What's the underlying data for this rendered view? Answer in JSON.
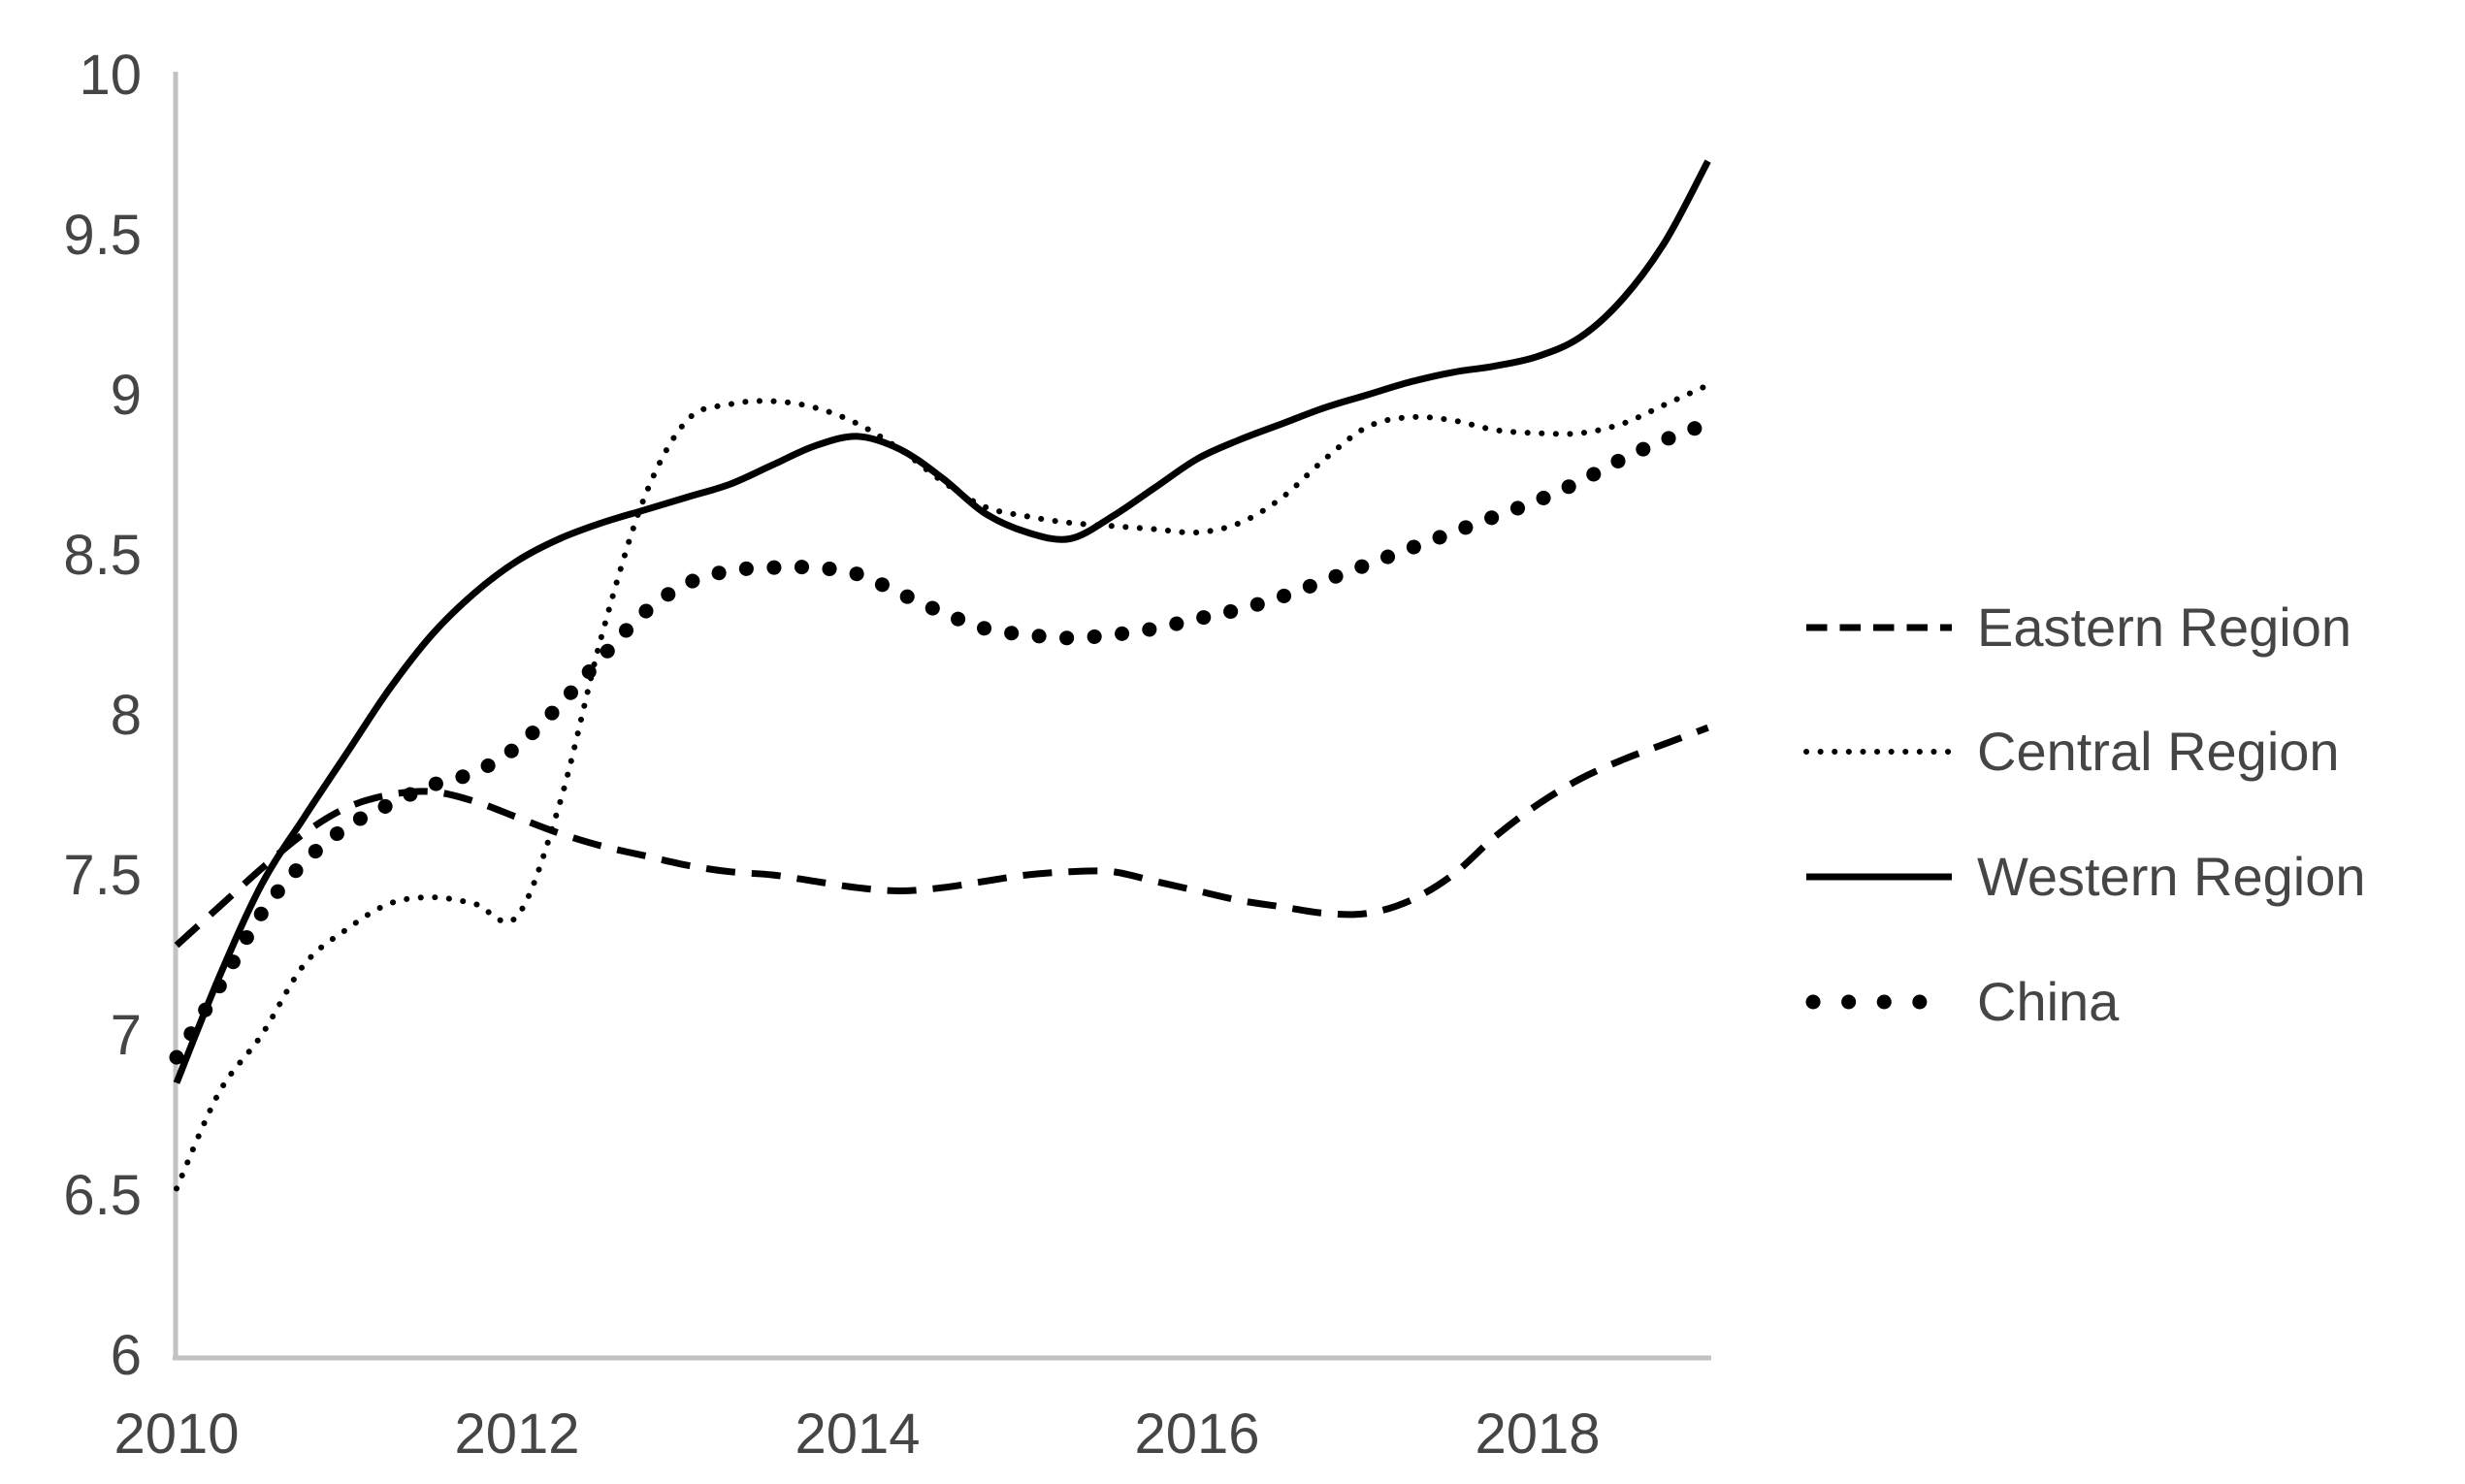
{
  "page": {
    "background": "#ffffff"
  },
  "chart_data": {
    "type": "line",
    "title": "",
    "xlabel": "",
    "ylabel": "",
    "grid": false,
    "legend_position": "right",
    "line_color": "#000000",
    "axis_color": "#c2c2c2",
    "tick_label_color": "#454545",
    "xlim": [
      2010,
      2019
    ],
    "ylim": [
      6,
      10
    ],
    "x_ticks": [
      "2010",
      "2012",
      "2014",
      "2016",
      "2018"
    ],
    "y_ticks": [
      "10",
      "9.5",
      "9",
      "8.5",
      "8",
      "7.5",
      "7",
      "6.5",
      "6"
    ],
    "x": [
      2010,
      2010.25,
      2010.5,
      2010.75,
      2011,
      2011.25,
      2011.5,
      2011.75,
      2012,
      2012.25,
      2012.5,
      2012.75,
      2013,
      2013.25,
      2013.5,
      2013.75,
      2014,
      2014.25,
      2014.5,
      2014.75,
      2015,
      2015.25,
      2015.5,
      2015.75,
      2016,
      2016.25,
      2016.5,
      2016.75,
      2017,
      2017.25,
      2017.5,
      2017.75,
      2018,
      2018.25,
      2018.5,
      2018.75,
      2019
    ],
    "series": [
      {
        "name": "Eastern Region",
        "style": "dashed",
        "values": [
          7.28,
          7.4,
          7.52,
          7.63,
          7.71,
          7.75,
          7.76,
          7.73,
          7.68,
          7.63,
          7.59,
          7.56,
          7.53,
          7.51,
          7.5,
          7.48,
          7.46,
          7.45,
          7.46,
          7.48,
          7.5,
          7.51,
          7.51,
          7.48,
          7.45,
          7.42,
          7.4,
          7.38,
          7.38,
          7.42,
          7.5,
          7.62,
          7.72,
          7.8,
          7.86,
          7.91,
          7.96
        ]
      },
      {
        "name": "Central Region",
        "style": "dotted",
        "values": [
          6.52,
          6.82,
          7.0,
          7.22,
          7.33,
          7.41,
          7.43,
          7.41,
          7.37,
          7.72,
          8.25,
          8.68,
          8.92,
          8.97,
          8.98,
          8.96,
          8.91,
          8.83,
          8.73,
          8.65,
          8.62,
          8.6,
          8.59,
          8.58,
          8.57,
          8.6,
          8.68,
          8.8,
          8.9,
          8.93,
          8.92,
          8.89,
          8.88,
          8.88,
          8.91,
          8.97,
          9.03
        ]
      },
      {
        "name": "Western Region",
        "style": "solid",
        "values": [
          6.85,
          7.18,
          7.47,
          7.68,
          7.88,
          8.08,
          8.25,
          8.38,
          8.48,
          8.55,
          8.6,
          8.64,
          8.68,
          8.72,
          8.78,
          8.84,
          8.87,
          8.83,
          8.74,
          8.63,
          8.57,
          8.55,
          8.62,
          8.71,
          8.8,
          8.86,
          8.91,
          8.96,
          9.0,
          9.04,
          9.07,
          9.09,
          9.12,
          9.18,
          9.3,
          9.48,
          9.73
        ]
      },
      {
        "name": "China",
        "style": "bigdot",
        "values": [
          6.93,
          7.15,
          7.38,
          7.54,
          7.65,
          7.72,
          7.78,
          7.82,
          7.9,
          8.03,
          8.18,
          8.32,
          8.41,
          8.45,
          8.46,
          8.46,
          8.44,
          8.38,
          8.32,
          8.27,
          8.25,
          8.24,
          8.25,
          8.27,
          8.3,
          8.33,
          8.37,
          8.42,
          8.47,
          8.52,
          8.57,
          8.62,
          8.67,
          8.73,
          8.8,
          8.86,
          8.91
        ]
      }
    ]
  }
}
